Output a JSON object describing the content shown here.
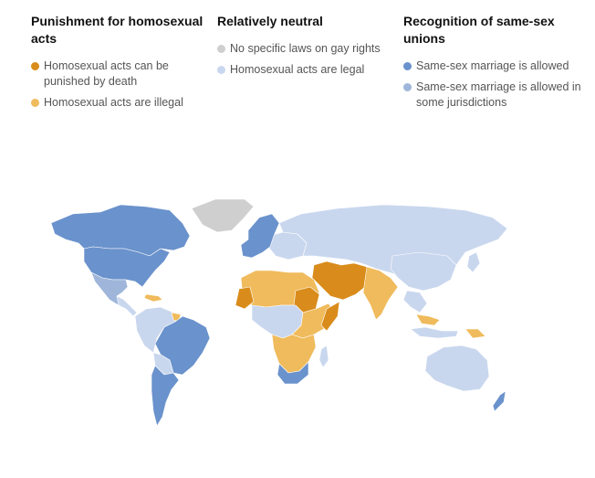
{
  "legend": {
    "groups": [
      {
        "title": "Punishment for homosexual acts",
        "items": [
          {
            "label": "Homosexual acts can be punished by death",
            "color": "#d98c1b"
          },
          {
            "label": "Homosexual acts are illegal",
            "color": "#f0bb5c"
          }
        ]
      },
      {
        "title": "Relatively neutral",
        "items": [
          {
            "label": "No specific laws on gay rights",
            "color": "#cfcfcf"
          },
          {
            "label": "Homosexual acts are legal",
            "color": "#c9d7ee"
          }
        ]
      },
      {
        "title": "Recognition of same-sex unions",
        "items": [
          {
            "label": "Same-sex marriage is allowed",
            "color": "#6a92cc"
          },
          {
            "label": "Same-sex marriage is allowed in some jurisdictions",
            "color": "#9fb6da"
          }
        ]
      }
    ]
  },
  "colors": {
    "death": "#d98c1b",
    "illegal": "#f0bb5c",
    "no_laws": "#cfcfcf",
    "legal": "#c9d7ee",
    "marriage": "#6a92cc",
    "some_jurisdictions": "#9fb6da"
  }
}
